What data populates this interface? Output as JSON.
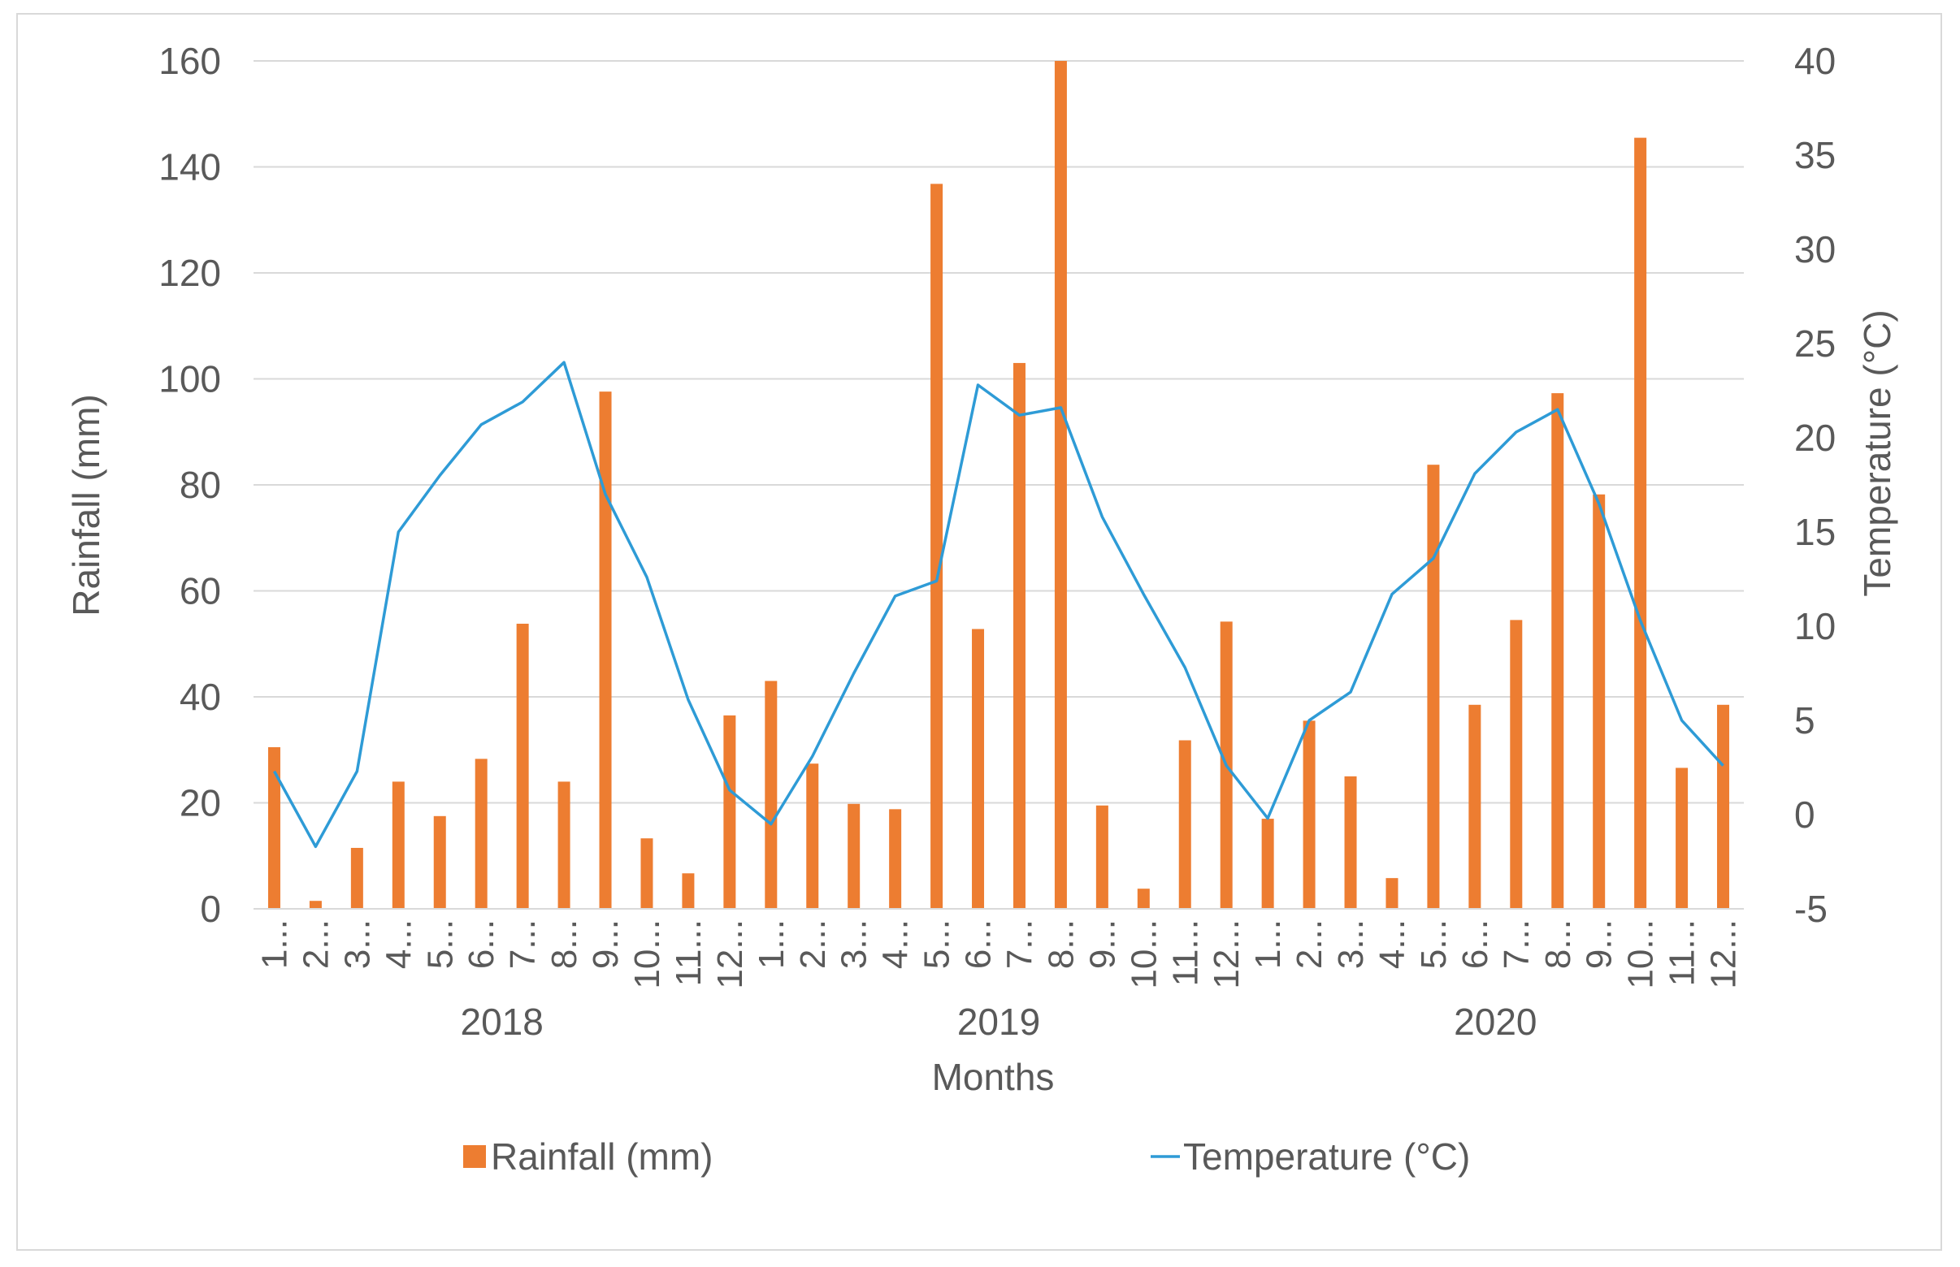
{
  "chart_data": {
    "type": "bar+line",
    "title": "",
    "categories": [
      "1...",
      "2...",
      "3...",
      "4...",
      "5...",
      "6...",
      "7...",
      "8...",
      "9...",
      "10...",
      "11...",
      "12...",
      "1...",
      "2...",
      "3...",
      "4...",
      "5...",
      "6...",
      "7...",
      "8...",
      "9...",
      "10...",
      "11...",
      "12...",
      "1...",
      "2...",
      "3...",
      "4...",
      "5...",
      "6...",
      "7...",
      "8...",
      "9...",
      "10...",
      "11...",
      "12..."
    ],
    "groups": [
      {
        "label": "2018",
        "start": 0,
        "end": 11
      },
      {
        "label": "2019",
        "start": 12,
        "end": 23
      },
      {
        "label": "2020",
        "start": 24,
        "end": 35
      }
    ],
    "series": [
      {
        "name": "Rainfall (mm)",
        "type": "bar",
        "axis": "left",
        "color": "#ED7D31",
        "values": [
          30.5,
          1.5,
          11.5,
          24,
          17.5,
          28.3,
          53.8,
          24,
          97.6,
          13.3,
          6.7,
          36.5,
          43,
          27.4,
          19.8,
          18.8,
          136.8,
          52.8,
          103,
          160,
          19.5,
          3.8,
          31.8,
          54.2,
          17,
          35.5,
          25,
          5.8,
          83.8,
          38.5,
          54.5,
          97.3,
          78.2,
          145.5,
          26.6,
          38.5
        ]
      },
      {
        "name": "Temperature (°C)",
        "type": "line",
        "axis": "right",
        "color": "#2E9BD6",
        "values": [
          2.3,
          -1.7,
          2.3,
          15,
          18,
          20.7,
          21.9,
          24,
          17,
          12.6,
          6.1,
          1.3,
          -0.5,
          3.1,
          7.5,
          11.6,
          12.4,
          22.8,
          21.2,
          21.6,
          15.8,
          11.7,
          7.8,
          2.6,
          -0.2,
          5,
          6.5,
          11.7,
          13.6,
          18.1,
          20.3,
          21.5,
          16.5,
          10.3,
          5,
          2.6
        ]
      }
    ],
    "xlabel": "Months",
    "ylabel": "Rainfall (mm)",
    "y2label": "Temperature (°C)",
    "ylim": [
      0,
      160
    ],
    "y2lim": [
      -5,
      40
    ],
    "yticks": [
      "0",
      "20",
      "40",
      "60",
      "80",
      "100",
      "120",
      "140",
      "160"
    ],
    "y2ticks": [
      "-5",
      "0",
      "5",
      "10",
      "15",
      "20",
      "25",
      "30",
      "35",
      "40"
    ],
    "grid": true,
    "legend": {
      "position": "bottom",
      "items": [
        "Rainfall (mm)",
        "Temperature (°C)"
      ]
    }
  }
}
